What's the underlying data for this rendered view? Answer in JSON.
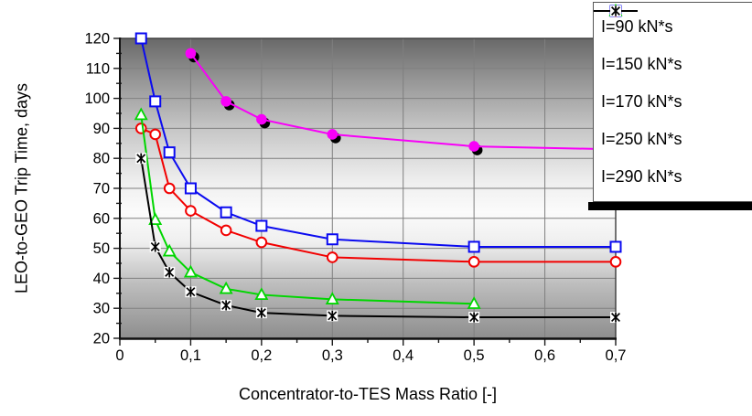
{
  "chart_data": {
    "type": "line",
    "xlabel": "Concentrator-to-TES Mass Ratio [-]",
    "ylabel": "LEO-to-GEO Trip Time, days",
    "xlim": [
      0,
      0.7
    ],
    "ylim": [
      20,
      120
    ],
    "x_major_step": 0.1,
    "x_minor_step": 0.05,
    "y_major_step": 10,
    "y_minor_step": 5,
    "x_tick_labels": [
      "0",
      "0,1",
      "0,2",
      "0,3",
      "0,4",
      "0,5",
      "0,6",
      "0,7"
    ],
    "y_tick_labels": [
      "20",
      "30",
      "40",
      "50",
      "60",
      "70",
      "80",
      "90",
      "100",
      "110",
      "120"
    ],
    "grid": true,
    "legend_position": "top-right-overlay",
    "plot_background": "gray-white-gray-gradient",
    "series": [
      {
        "name": "I=90 kN*s",
        "color": "#f800f8",
        "marker": "filled-circle",
        "marker_shadow": true,
        "points": [
          [
            0.1,
            115
          ],
          [
            0.15,
            99
          ],
          [
            0.2,
            93
          ],
          [
            0.3,
            88
          ],
          [
            0.5,
            84
          ],
          [
            0.7,
            83
          ]
        ]
      },
      {
        "name": "I=150 kN*s",
        "color": "#0a0af0",
        "marker": "open-square",
        "marker_shadow": false,
        "points": [
          [
            0.03,
            120
          ],
          [
            0.05,
            99
          ],
          [
            0.07,
            82
          ],
          [
            0.1,
            70
          ],
          [
            0.15,
            62
          ],
          [
            0.2,
            57.5
          ],
          [
            0.3,
            53
          ],
          [
            0.5,
            50.5
          ],
          [
            0.7,
            50.5
          ]
        ]
      },
      {
        "name": "I=170 kN*s",
        "color": "#f20000",
        "marker": "open-circle",
        "marker_shadow": false,
        "points": [
          [
            0.03,
            90
          ],
          [
            0.05,
            88
          ],
          [
            0.07,
            70
          ],
          [
            0.1,
            62.5
          ],
          [
            0.15,
            56
          ],
          [
            0.2,
            52
          ],
          [
            0.3,
            47
          ],
          [
            0.5,
            45.5
          ],
          [
            0.7,
            45.5
          ]
        ]
      },
      {
        "name": "I=250 kN*s",
        "color": "#00d600",
        "marker": "open-triangle",
        "marker_shadow": false,
        "points": [
          [
            0.03,
            94.5
          ],
          [
            0.05,
            59.5
          ],
          [
            0.07,
            49
          ],
          [
            0.1,
            42
          ],
          [
            0.15,
            36.5
          ],
          [
            0.2,
            34.5
          ],
          [
            0.3,
            33
          ],
          [
            0.5,
            31.5
          ]
        ]
      },
      {
        "name": "I=290 kN*s",
        "color": "#000000",
        "marker": "star",
        "marker_shadow": false,
        "marker_background": "#ffffff",
        "points": [
          [
            0.03,
            80
          ],
          [
            0.05,
            50.5
          ],
          [
            0.07,
            42
          ],
          [
            0.1,
            35.5
          ],
          [
            0.15,
            31
          ],
          [
            0.2,
            28.5
          ],
          [
            0.3,
            27.5
          ],
          [
            0.5,
            27
          ],
          [
            0.7,
            27
          ]
        ]
      }
    ]
  }
}
